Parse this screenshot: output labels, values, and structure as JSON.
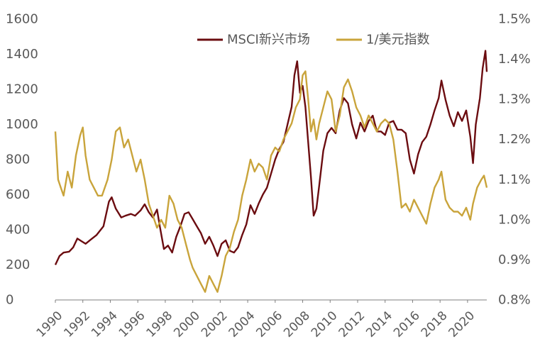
{
  "chart_data": {
    "type": "line",
    "title": "",
    "xlabel": "",
    "ylabel": "",
    "y2label": "",
    "x_ticks": [
      "1990",
      "1992",
      "1994",
      "1996",
      "1998",
      "2000",
      "2002",
      "2004",
      "2006",
      "2008",
      "2010",
      "2012",
      "2014",
      "2016",
      "2018",
      "2020"
    ],
    "ylim": [
      0,
      1600
    ],
    "y_ticks": [
      "0",
      "200",
      "400",
      "600",
      "800",
      "1000",
      "1200",
      "1400",
      "1600"
    ],
    "y2lim": [
      0.8,
      1.5
    ],
    "y2_ticks": [
      "0.8%",
      "0.9%",
      "1.0%",
      "1.1%",
      "1.2%",
      "1.3%",
      "1.4%",
      "1.5%"
    ],
    "grid": false,
    "legend_position": "top-center",
    "series": [
      {
        "name": "MSCI新兴市场",
        "axis": "left",
        "color": "#6b0c10",
        "points": [
          [
            1990.0,
            200
          ],
          [
            1990.3,
            250
          ],
          [
            1990.6,
            270
          ],
          [
            1991.0,
            275
          ],
          [
            1991.3,
            300
          ],
          [
            1991.6,
            350
          ],
          [
            1991.9,
            335
          ],
          [
            1992.2,
            320
          ],
          [
            1992.6,
            345
          ],
          [
            1993.0,
            370
          ],
          [
            1993.5,
            420
          ],
          [
            1993.9,
            560
          ],
          [
            1994.1,
            585
          ],
          [
            1994.4,
            520
          ],
          [
            1994.8,
            470
          ],
          [
            1995.1,
            480
          ],
          [
            1995.5,
            490
          ],
          [
            1995.8,
            480
          ],
          [
            1996.2,
            510
          ],
          [
            1996.5,
            545
          ],
          [
            1996.8,
            500
          ],
          [
            1997.1,
            470
          ],
          [
            1997.4,
            515
          ],
          [
            1997.6,
            420
          ],
          [
            1997.9,
            290
          ],
          [
            1998.2,
            310
          ],
          [
            1998.5,
            270
          ],
          [
            1998.8,
            360
          ],
          [
            1999.1,
            420
          ],
          [
            1999.4,
            490
          ],
          [
            1999.7,
            500
          ],
          [
            2000.0,
            460
          ],
          [
            2000.3,
            420
          ],
          [
            2000.6,
            380
          ],
          [
            2000.9,
            320
          ],
          [
            2001.2,
            360
          ],
          [
            2001.5,
            310
          ],
          [
            2001.8,
            250
          ],
          [
            2002.1,
            320
          ],
          [
            2002.4,
            340
          ],
          [
            2002.7,
            280
          ],
          [
            2003.0,
            270
          ],
          [
            2003.3,
            300
          ],
          [
            2003.6,
            370
          ],
          [
            2003.9,
            430
          ],
          [
            2004.2,
            540
          ],
          [
            2004.5,
            490
          ],
          [
            2004.8,
            550
          ],
          [
            2005.1,
            600
          ],
          [
            2005.4,
            640
          ],
          [
            2005.7,
            720
          ],
          [
            2006.0,
            800
          ],
          [
            2006.3,
            860
          ],
          [
            2006.6,
            900
          ],
          [
            2006.9,
            1000
          ],
          [
            2007.2,
            1100
          ],
          [
            2007.4,
            1280
          ],
          [
            2007.6,
            1360
          ],
          [
            2007.8,
            1180
          ],
          [
            2008.0,
            1220
          ],
          [
            2008.2,
            1100
          ],
          [
            2008.4,
            900
          ],
          [
            2008.6,
            700
          ],
          [
            2008.8,
            480
          ],
          [
            2009.0,
            520
          ],
          [
            2009.2,
            650
          ],
          [
            2009.5,
            850
          ],
          [
            2009.8,
            950
          ],
          [
            2010.1,
            980
          ],
          [
            2010.4,
            950
          ],
          [
            2010.7,
            1080
          ],
          [
            2011.0,
            1150
          ],
          [
            2011.3,
            1120
          ],
          [
            2011.6,
            1000
          ],
          [
            2011.9,
            920
          ],
          [
            2012.2,
            1010
          ],
          [
            2012.5,
            960
          ],
          [
            2012.8,
            1020
          ],
          [
            2013.1,
            1050
          ],
          [
            2013.4,
            960
          ],
          [
            2013.7,
            960
          ],
          [
            2014.0,
            940
          ],
          [
            2014.3,
            1010
          ],
          [
            2014.6,
            1020
          ],
          [
            2014.9,
            970
          ],
          [
            2015.2,
            970
          ],
          [
            2015.5,
            950
          ],
          [
            2015.8,
            800
          ],
          [
            2016.1,
            720
          ],
          [
            2016.4,
            830
          ],
          [
            2016.7,
            900
          ],
          [
            2017.0,
            930
          ],
          [
            2017.3,
            1000
          ],
          [
            2017.6,
            1080
          ],
          [
            2017.9,
            1150
          ],
          [
            2018.1,
            1250
          ],
          [
            2018.4,
            1140
          ],
          [
            2018.7,
            1050
          ],
          [
            2019.0,
            990
          ],
          [
            2019.3,
            1070
          ],
          [
            2019.6,
            1020
          ],
          [
            2019.9,
            1080
          ],
          [
            2020.2,
            930
          ],
          [
            2020.4,
            780
          ],
          [
            2020.6,
            1000
          ],
          [
            2020.9,
            1150
          ],
          [
            2021.1,
            1320
          ],
          [
            2021.3,
            1420
          ],
          [
            2021.4,
            1300
          ]
        ]
      },
      {
        "name": "1/美元指数",
        "axis": "right",
        "color": "#c9a43b",
        "points": [
          [
            1990.0,
            1.22
          ],
          [
            1990.2,
            1.1
          ],
          [
            1990.4,
            1.08
          ],
          [
            1990.6,
            1.06
          ],
          [
            1990.9,
            1.12
          ],
          [
            1991.2,
            1.08
          ],
          [
            1991.5,
            1.16
          ],
          [
            1991.8,
            1.21
          ],
          [
            1992.0,
            1.23
          ],
          [
            1992.2,
            1.16
          ],
          [
            1992.5,
            1.1
          ],
          [
            1992.8,
            1.08
          ],
          [
            1993.1,
            1.06
          ],
          [
            1993.4,
            1.06
          ],
          [
            1993.8,
            1.1
          ],
          [
            1994.1,
            1.15
          ],
          [
            1994.4,
            1.22
          ],
          [
            1994.7,
            1.23
          ],
          [
            1995.0,
            1.18
          ],
          [
            1995.3,
            1.2
          ],
          [
            1995.6,
            1.16
          ],
          [
            1995.9,
            1.12
          ],
          [
            1996.2,
            1.15
          ],
          [
            1996.5,
            1.1
          ],
          [
            1996.8,
            1.04
          ],
          [
            1997.1,
            1.01
          ],
          [
            1997.4,
            0.98
          ],
          [
            1997.7,
            1.0
          ],
          [
            1998.0,
            0.98
          ],
          [
            1998.3,
            1.06
          ],
          [
            1998.6,
            1.04
          ],
          [
            1998.9,
            1.0
          ],
          [
            1999.2,
            0.98
          ],
          [
            1999.5,
            0.94
          ],
          [
            1999.8,
            0.9
          ],
          [
            2000.0,
            0.88
          ],
          [
            2000.3,
            0.86
          ],
          [
            2000.6,
            0.84
          ],
          [
            2000.9,
            0.82
          ],
          [
            2001.2,
            0.86
          ],
          [
            2001.5,
            0.84
          ],
          [
            2001.8,
            0.82
          ],
          [
            2002.1,
            0.86
          ],
          [
            2002.4,
            0.91
          ],
          [
            2002.7,
            0.93
          ],
          [
            2003.0,
            0.97
          ],
          [
            2003.3,
            1.0
          ],
          [
            2003.6,
            1.06
          ],
          [
            2003.9,
            1.1
          ],
          [
            2004.2,
            1.15
          ],
          [
            2004.5,
            1.12
          ],
          [
            2004.8,
            1.14
          ],
          [
            2005.1,
            1.13
          ],
          [
            2005.4,
            1.1
          ],
          [
            2005.7,
            1.16
          ],
          [
            2006.0,
            1.18
          ],
          [
            2006.3,
            1.17
          ],
          [
            2006.6,
            1.2
          ],
          [
            2006.9,
            1.22
          ],
          [
            2007.2,
            1.24
          ],
          [
            2007.5,
            1.28
          ],
          [
            2007.8,
            1.3
          ],
          [
            2008.0,
            1.36
          ],
          [
            2008.2,
            1.37
          ],
          [
            2008.4,
            1.3
          ],
          [
            2008.6,
            1.22
          ],
          [
            2008.8,
            1.25
          ],
          [
            2009.0,
            1.2
          ],
          [
            2009.2,
            1.24
          ],
          [
            2009.5,
            1.28
          ],
          [
            2009.8,
            1.32
          ],
          [
            2010.1,
            1.3
          ],
          [
            2010.4,
            1.22
          ],
          [
            2010.7,
            1.26
          ],
          [
            2011.0,
            1.33
          ],
          [
            2011.3,
            1.35
          ],
          [
            2011.6,
            1.32
          ],
          [
            2011.9,
            1.28
          ],
          [
            2012.2,
            1.26
          ],
          [
            2012.5,
            1.23
          ],
          [
            2012.8,
            1.26
          ],
          [
            2013.1,
            1.24
          ],
          [
            2013.4,
            1.22
          ],
          [
            2013.7,
            1.24
          ],
          [
            2014.0,
            1.25
          ],
          [
            2014.3,
            1.24
          ],
          [
            2014.6,
            1.2
          ],
          [
            2014.9,
            1.12
          ],
          [
            2015.2,
            1.03
          ],
          [
            2015.5,
            1.04
          ],
          [
            2015.8,
            1.02
          ],
          [
            2016.1,
            1.05
          ],
          [
            2016.4,
            1.03
          ],
          [
            2016.7,
            1.01
          ],
          [
            2017.0,
            0.99
          ],
          [
            2017.3,
            1.04
          ],
          [
            2017.6,
            1.08
          ],
          [
            2017.9,
            1.1
          ],
          [
            2018.1,
            1.12
          ],
          [
            2018.4,
            1.05
          ],
          [
            2018.7,
            1.03
          ],
          [
            2019.0,
            1.02
          ],
          [
            2019.3,
            1.02
          ],
          [
            2019.6,
            1.01
          ],
          [
            2019.9,
            1.03
          ],
          [
            2020.2,
            1.0
          ],
          [
            2020.4,
            1.04
          ],
          [
            2020.7,
            1.08
          ],
          [
            2021.0,
            1.1
          ],
          [
            2021.2,
            1.11
          ],
          [
            2021.4,
            1.08
          ]
        ]
      }
    ]
  }
}
